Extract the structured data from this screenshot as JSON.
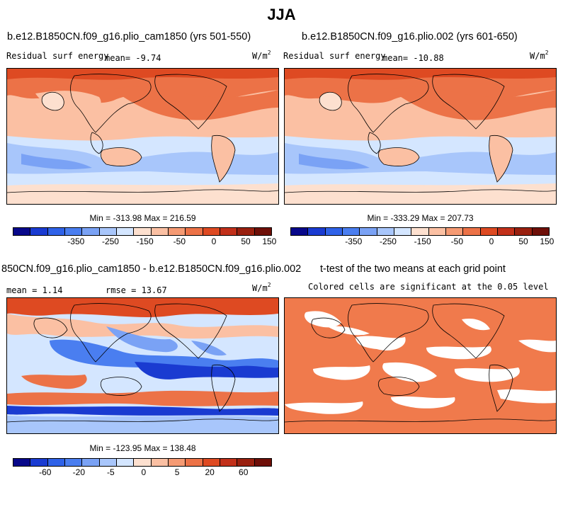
{
  "figure_title": "JJA",
  "panel1": {
    "title": "b.e12.B1850CN.f09_g16.plio_cam1850 (yrs 501-550)",
    "var_label": "Residual surf energy",
    "mean_label": "mean= -9.74",
    "units": "W/m",
    "units_exp": "2",
    "minmax": "Min = -313.98 Max = 216.59"
  },
  "panel2": {
    "title": "b.e12.B1850CN.f09_g16.plio.002 (yrs 601-650)",
    "var_label": "Residual surf energy",
    "mean_label": "mean= -10.88",
    "units": "W/m",
    "units_exp": "2",
    "minmax": "Min = -333.29 Max = 207.73"
  },
  "panel3": {
    "title": "850CN.f09_g16.plio_cam1850 - b.e12.B1850CN.f09_g16.plio.002",
    "mean_label": "mean = 1.14",
    "rmse_label": "rmse = 13.67",
    "units": "W/m",
    "units_exp": "2",
    "minmax": "Min = -123.95 Max = 138.48"
  },
  "panel4": {
    "title": "t-test of the two means at each grid point",
    "subtitle": "Colored cells are significant at the 0.05 level"
  },
  "colorbar_top": {
    "colors": [
      "#08088a",
      "#1a3bd1",
      "#2f62e8",
      "#4a7ef0",
      "#7aa2f5",
      "#a8c6fb",
      "#d4e6ff",
      "#fde0cf",
      "#fbc0a3",
      "#f59a73",
      "#ec7247",
      "#de4a22",
      "#c2301a",
      "#99200f",
      "#6e0f08"
    ],
    "tick_labels": [
      "-350",
      "-250",
      "-150",
      "-50",
      "0",
      "50",
      "150"
    ]
  },
  "colorbar_diff": {
    "colors": [
      "#08088a",
      "#1a3bd1",
      "#2f62e8",
      "#4a7ef0",
      "#7aa2f5",
      "#a8c6fb",
      "#d4e6ff",
      "#fde0cf",
      "#fbc0a3",
      "#f59a73",
      "#ec7247",
      "#de4a22",
      "#c2301a",
      "#99200f",
      "#6e0f08"
    ],
    "tick_labels": [
      "-60",
      "-20",
      "-5",
      "0",
      "5",
      "20",
      "60"
    ]
  },
  "colors": {
    "ttest_fill": "#f07a4c"
  }
}
